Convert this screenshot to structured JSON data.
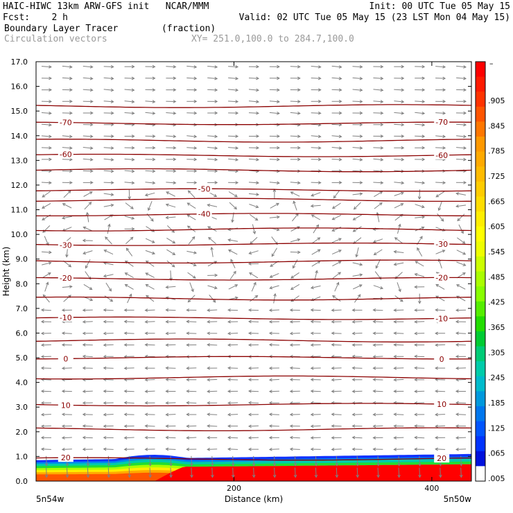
{
  "header": {
    "line1_left": "HAIC-HIWC 13km ARW-GFS init   NCAR/MMM",
    "line1_right": "Init: 00 UTC Tue 05 May 15",
    "line2_left": "Fcst:    2 h",
    "line2_right": "Valid: 02 UTC Tue 05 May 15 (23 LST Mon 04 May 15)",
    "line3_left": "Boundary Layer Tracer        (fraction)",
    "line4_left": "Circulation vectors",
    "line4_right": "XY= 251.0,100.0 to 284.7,100.0"
  },
  "chart_data": {
    "type": "heatmap",
    "ylabel": "Height (km)",
    "xlabel": "Distance (km)",
    "x_range": [
      0,
      440
    ],
    "ylim": [
      0,
      17
    ],
    "y_ticks": [
      "0.0",
      "1.0",
      "2.0",
      "3.0",
      "4.0",
      "5.0",
      "6.0",
      "7.0",
      "8.0",
      "9.0",
      "10.0",
      "11.0",
      "12.0",
      "13.0",
      "14.0",
      "15.0",
      "16.0",
      "17.0"
    ],
    "x_ticks": [
      {
        "value": 200,
        "label": "200"
      },
      {
        "value": 400,
        "label": "400"
      }
    ],
    "x_end_labels": {
      "left": "5n54w",
      "right": "5n50w"
    },
    "colorbar": {
      "top_label": "–",
      "labels": [
        ".905",
        ".845",
        ".785",
        ".725",
        ".665",
        ".605",
        ".545",
        ".485",
        ".425",
        ".365",
        ".305",
        ".245",
        ".185",
        ".125",
        ".065",
        ".005"
      ],
      "colors": [
        "#ff0000",
        "#ff1a00",
        "#ff3300",
        "#ff5500",
        "#ff7700",
        "#ff9900",
        "#ffaa00",
        "#ffbb00",
        "#ffcc00",
        "#ffdd00",
        "#ffee00",
        "#ffff00",
        "#eeff00",
        "#ccff00",
        "#aaff00",
        "#88ff00",
        "#55ee00",
        "#22dd00",
        "#00cc33",
        "#00cc77",
        "#00ccaa",
        "#00bbcc",
        "#0099dd",
        "#0077ee",
        "#0055ff",
        "#0033ff",
        "#0011dd",
        "#ffffff"
      ]
    },
    "temperature_contours": [
      {
        "level": -70,
        "height_km": 14.5,
        "labels": [
          "-70",
          "-70"
        ]
      },
      {
        "level": -60,
        "height_km": 13.2,
        "labels": [
          "-60",
          "-60"
        ]
      },
      {
        "level": -50,
        "height_km": 11.8,
        "labels": [
          "-50"
        ]
      },
      {
        "level": -40,
        "height_km": 10.8,
        "labels": [
          "-40"
        ]
      },
      {
        "level": -30,
        "height_km": 9.6,
        "labels": [
          "-30",
          "-30"
        ]
      },
      {
        "level": -20,
        "height_km": 8.2,
        "labels": [
          "-20",
          "-20"
        ]
      },
      {
        "level": -10,
        "height_km": 6.6,
        "labels": [
          "-10",
          "-10"
        ]
      },
      {
        "level": 0,
        "height_km": 5.0,
        "labels": [
          "0",
          "0"
        ]
      },
      {
        "level": 10,
        "height_km": 3.1,
        "labels": [
          "10",
          "10"
        ]
      },
      {
        "level": 20,
        "height_km": 0.9,
        "labels": [
          "20",
          "20"
        ]
      }
    ],
    "extra_contour_heights_km": [
      15.2,
      13.8,
      12.6,
      11.4,
      10.2,
      8.9,
      7.4,
      5.7,
      4.2,
      2.1
    ],
    "tracer_layer": {
      "description": "boundary layer tracer fraction near surface",
      "top_height_km_west": 0.85,
      "top_height_km_east": 1.1
    }
  }
}
